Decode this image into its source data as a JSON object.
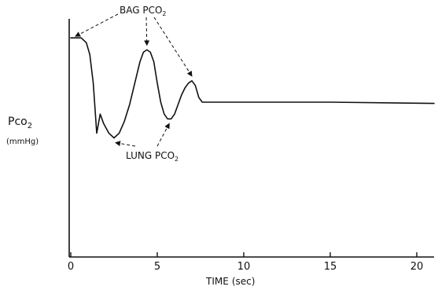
{
  "chart_data": {
    "type": "line",
    "title": "",
    "xlabel": {
      "text": "TIME",
      "unit": "(sec)"
    },
    "ylabel": {
      "main": "Pco",
      "subscript": "2",
      "unit": "(mmHg)"
    },
    "xlim": [
      0,
      21
    ],
    "ylim": [
      0,
      1
    ],
    "x_ticks": [
      0,
      5,
      10,
      15,
      20
    ],
    "x_tick_labels": [
      "0",
      "5",
      "10",
      "15",
      "20"
    ],
    "y_ticks": [],
    "grid": false,
    "legend": "none",
    "series": [
      {
        "x": [
          0,
          0.6,
          0.9,
          1.1,
          1.3,
          1.5,
          1.7,
          1.9,
          2.2,
          2.5,
          2.8,
          3.1,
          3.4,
          3.7,
          4.0,
          4.2,
          4.4,
          4.6,
          4.8,
          5.0,
          5.2,
          5.4,
          5.6,
          5.8,
          6.0,
          6.2,
          6.4,
          6.6,
          6.8,
          7.0,
          7.2,
          7.4,
          7.6,
          7.8,
          8.0,
          10,
          15,
          21
        ],
        "y": [
          0.92,
          0.92,
          0.9,
          0.85,
          0.73,
          0.52,
          0.6,
          0.56,
          0.52,
          0.5,
          0.52,
          0.57,
          0.64,
          0.73,
          0.82,
          0.86,
          0.87,
          0.86,
          0.82,
          0.73,
          0.65,
          0.6,
          0.58,
          0.58,
          0.6,
          0.64,
          0.68,
          0.71,
          0.73,
          0.74,
          0.72,
          0.67,
          0.65,
          0.65,
          0.65,
          0.65,
          0.65,
          0.645
        ]
      }
    ],
    "annotations": [
      {
        "main": "BAG P",
        "lower": "CO",
        "subscript": "2",
        "targets_x": [
          0,
          4.4,
          7.0
        ]
      },
      {
        "main": "LUNG P",
        "lower": "CO",
        "subscript": "2",
        "targets_x": [
          2.5,
          5.6
        ]
      }
    ]
  }
}
